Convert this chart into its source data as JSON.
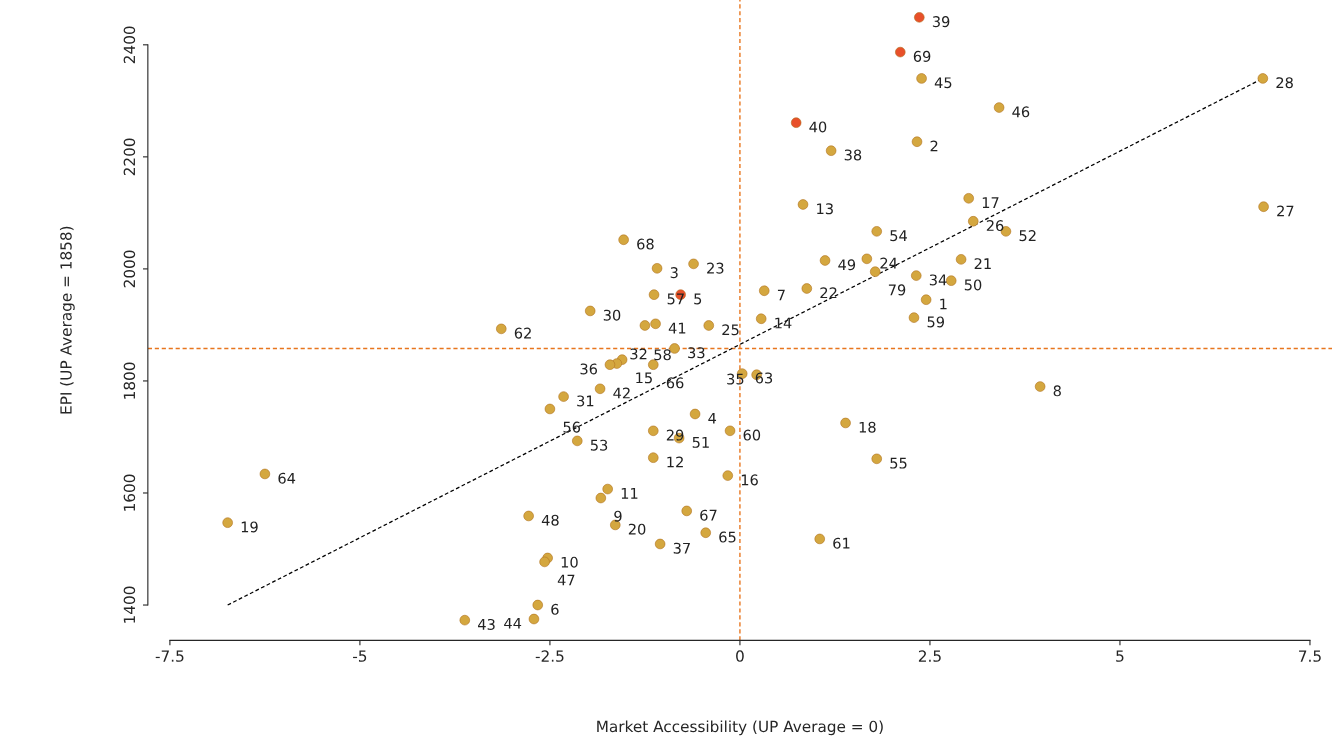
{
  "chart_data": {
    "type": "scatter",
    "xlabel": "Market Accessibility (UP Average = 0)",
    "ylabel": "EPI (UP Average = 1858)",
    "xlim": [
      -7.79,
      7.79
    ],
    "ylim": [
      1337,
      2480
    ],
    "xticks": [
      -7.5,
      -5,
      -2.5,
      0,
      2.5,
      5,
      7.5
    ],
    "yticks": [
      1400,
      1600,
      1800,
      2000,
      2200,
      2400
    ],
    "grid": false,
    "legend": false,
    "series": [
      {
        "marker": "circle",
        "x": [
          2.36,
          2.11,
          2.39,
          6.88,
          3.41,
          0.74,
          2.33,
          1.2,
          3.01,
          0.83,
          6.89,
          3.07,
          1.8,
          3.5,
          -1.53,
          1.12,
          1.67,
          2.91,
          -1.09,
          -0.61,
          1.78,
          2.32,
          2.78,
          0.32,
          0.88,
          -0.78,
          -1.13,
          2.45,
          -1.97,
          2.29,
          0.28,
          -1.11,
          -1.25,
          -0.41,
          -3.14,
          -0.86,
          -1.55,
          -1.62,
          -1.71,
          -1.14,
          0.03,
          0.22,
          3.95,
          -1.84,
          -2.32,
          -2.5,
          -0.59,
          1.39,
          -1.14,
          -0.13,
          -0.8,
          -2.14,
          -1.14,
          1.8,
          -6.25,
          -0.16,
          -1.74,
          -1.83,
          -6.74,
          -2.78,
          -0.7,
          -1.64,
          -0.45,
          1.05,
          -1.05,
          -2.53,
          -2.57,
          -2.66,
          -3.62,
          -2.71
        ],
        "values": [
          2449,
          2387,
          2340,
          2340,
          2288,
          2261,
          2227,
          2211,
          2126,
          2115,
          2111,
          2085,
          2067,
          2067,
          2052,
          2015,
          2018,
          2017,
          2001,
          2009,
          1995,
          1988,
          1979,
          1961,
          1965,
          1954,
          1954,
          1945,
          1925,
          1913,
          1911,
          1902,
          1899,
          1899,
          1893,
          1858,
          1838,
          1831,
          1829,
          1829,
          1813,
          1811,
          1790,
          1786,
          1772,
          1750,
          1741,
          1725,
          1711,
          1711,
          1698,
          1693,
          1663,
          1661,
          1634,
          1631,
          1607,
          1591,
          1547,
          1559,
          1568,
          1543,
          1529,
          1518,
          1509,
          1484,
          1477,
          1400,
          1373,
          1375
        ],
        "colors": [
          "#e8502a",
          "#e8502a",
          "#d4a73f",
          "#d4a73f",
          "#d4a73f",
          "#e8502a",
          "#d4a73f",
          "#d4a73f",
          "#d4a73f",
          "#d4a73f",
          "#d4a73f",
          "#d4a73f",
          "#d4a73f",
          "#d4a73f",
          "#d4a73f",
          "#d4a73f",
          "#d4a73f",
          "#d4a73f",
          "#d4a73f",
          "#d4a73f",
          "#d4a73f",
          "#d4a73f",
          "#d4a73f",
          "#d4a73f",
          "#d4a73f",
          "#e8502a",
          "#d4a73f",
          "#d4a73f",
          "#d4a73f",
          "#d4a73f",
          "#d4a73f",
          "#d4a73f",
          "#d4a73f",
          "#d4a73f",
          "#d4a73f",
          "#d4a73f",
          "#d4a73f",
          "#d4a73f",
          "#d4a73f",
          "#d4a73f",
          "#d4a73f",
          "#d4a73f",
          "#d4a73f",
          "#d4a73f",
          "#d4a73f",
          "#d4a73f",
          "#d4a73f",
          "#d4a73f",
          "#d4a73f",
          "#d4a73f",
          "#d4a73f",
          "#d4a73f",
          "#d4a73f",
          "#d4a73f",
          "#d4a73f",
          "#d4a73f",
          "#d4a73f",
          "#d4a73f",
          "#d4a73f",
          "#d4a73f",
          "#d4a73f",
          "#d4a73f",
          "#d4a73f",
          "#d4a73f",
          "#d4a73f",
          "#d4a73f",
          "#d4a73f",
          "#d4a73f",
          "#d4a73f",
          "#d4a73f"
        ]
      },
      {
        "type": "line",
        "color": "#000000",
        "line_style": "dashed",
        "x": [
          -6.74,
          6.88
        ],
        "values": [
          1400,
          2340
        ]
      }
    ],
    "annotations": [
      {
        "text": "39",
        "x": 2.36,
        "y": 2449
      },
      {
        "text": "69",
        "x": 2.11,
        "y": 2387
      },
      {
        "text": "45",
        "x": 2.39,
        "y": 2340
      },
      {
        "text": "28",
        "x": 6.88,
        "y": 2340
      },
      {
        "text": "46",
        "x": 3.41,
        "y": 2288
      },
      {
        "text": "40",
        "x": 0.74,
        "y": 2261
      },
      {
        "text": "2",
        "x": 2.33,
        "y": 2227
      },
      {
        "text": "38",
        "x": 1.2,
        "y": 2211
      },
      {
        "text": "17",
        "x": 3.01,
        "y": 2126
      },
      {
        "text": "13",
        "x": 0.83,
        "y": 2115
      },
      {
        "text": "27",
        "x": 6.89,
        "y": 2111
      },
      {
        "text": "26",
        "x": 3.07,
        "y": 2085
      },
      {
        "text": "54",
        "x": 1.8,
        "y": 2067
      },
      {
        "text": "52",
        "x": 3.5,
        "y": 2067
      },
      {
        "text": "68",
        "x": -1.53,
        "y": 2052
      },
      {
        "text": "49",
        "x": 1.12,
        "y": 2015
      },
      {
        "text": "24",
        "x": 1.67,
        "y": 2018
      },
      {
        "text": "21",
        "x": 2.91,
        "y": 2017
      },
      {
        "text": "3",
        "x": -1.09,
        "y": 2001
      },
      {
        "text": "23",
        "x": -0.61,
        "y": 2009
      },
      {
        "text": "79",
        "x": 1.78,
        "y": 1995
      },
      {
        "text": "34",
        "x": 2.32,
        "y": 1988
      },
      {
        "text": "50",
        "x": 2.78,
        "y": 1979
      },
      {
        "text": "7",
        "x": 0.32,
        "y": 1961
      },
      {
        "text": "22",
        "x": 0.88,
        "y": 1965
      },
      {
        "text": "5",
        "x": -0.78,
        "y": 1954
      },
      {
        "text": "57",
        "x": -1.13,
        "y": 1954
      },
      {
        "text": "1",
        "x": 2.45,
        "y": 1945
      },
      {
        "text": "30",
        "x": -1.97,
        "y": 1925
      },
      {
        "text": "59",
        "x": 2.29,
        "y": 1913
      },
      {
        "text": "14",
        "x": 0.28,
        "y": 1911
      },
      {
        "text": "41",
        "x": -1.11,
        "y": 1902
      },
      {
        "text": "58",
        "x": -1.25,
        "y": 1899
      },
      {
        "text": "25",
        "x": -0.41,
        "y": 1899
      },
      {
        "text": "62",
        "x": -3.14,
        "y": 1893
      },
      {
        "text": "33",
        "x": -0.86,
        "y": 1858
      },
      {
        "text": "15",
        "x": -1.55,
        "y": 1838
      },
      {
        "text": "32",
        "x": -1.62,
        "y": 1831
      },
      {
        "text": "36",
        "x": -1.71,
        "y": 1829
      },
      {
        "text": "66",
        "x": -1.14,
        "y": 1829
      },
      {
        "text": "63",
        "x": 0.03,
        "y": 1813
      },
      {
        "text": "35",
        "x": 0.22,
        "y": 1811
      },
      {
        "text": "8",
        "x": 3.95,
        "y": 1790
      },
      {
        "text": "42",
        "x": -1.84,
        "y": 1786
      },
      {
        "text": "31",
        "x": -2.32,
        "y": 1772
      },
      {
        "text": "56",
        "x": -2.5,
        "y": 1750
      },
      {
        "text": "4",
        "x": -0.59,
        "y": 1741
      },
      {
        "text": "18",
        "x": 1.39,
        "y": 1725
      },
      {
        "text": "29",
        "x": -1.14,
        "y": 1711
      },
      {
        "text": "60",
        "x": -0.13,
        "y": 1711
      },
      {
        "text": "51",
        "x": -0.8,
        "y": 1698
      },
      {
        "text": "53",
        "x": -2.14,
        "y": 1693
      },
      {
        "text": "12",
        "x": -1.14,
        "y": 1663
      },
      {
        "text": "55",
        "x": 1.8,
        "y": 1661
      },
      {
        "text": "64",
        "x": -6.25,
        "y": 1634
      },
      {
        "text": "16",
        "x": -0.16,
        "y": 1631
      },
      {
        "text": "11",
        "x": -1.74,
        "y": 1607
      },
      {
        "text": "9",
        "x": -1.83,
        "y": 1591
      },
      {
        "text": "19",
        "x": -6.74,
        "y": 1547
      },
      {
        "text": "48",
        "x": -2.78,
        "y": 1559
      },
      {
        "text": "67",
        "x": -0.7,
        "y": 1568
      },
      {
        "text": "20",
        "x": -1.64,
        "y": 1543
      },
      {
        "text": "65",
        "x": -0.45,
        "y": 1529
      },
      {
        "text": "61",
        "x": 1.05,
        "y": 1518
      },
      {
        "text": "37",
        "x": -1.05,
        "y": 1509
      },
      {
        "text": "10",
        "x": -2.53,
        "y": 1484
      },
      {
        "text": "47",
        "x": -2.57,
        "y": 1477
      },
      {
        "text": "6",
        "x": -2.66,
        "y": 1400
      },
      {
        "text": "43",
        "x": -3.62,
        "y": 1373
      },
      {
        "text": "44",
        "x": -2.71,
        "y": 1375
      }
    ],
    "ref_lines": [
      {
        "axis": "x",
        "value": 0,
        "color": "#e8761e",
        "line_style": "dashed"
      },
      {
        "axis": "y",
        "value": 1858,
        "color": "#e8761e",
        "line_style": "dashed"
      }
    ]
  }
}
